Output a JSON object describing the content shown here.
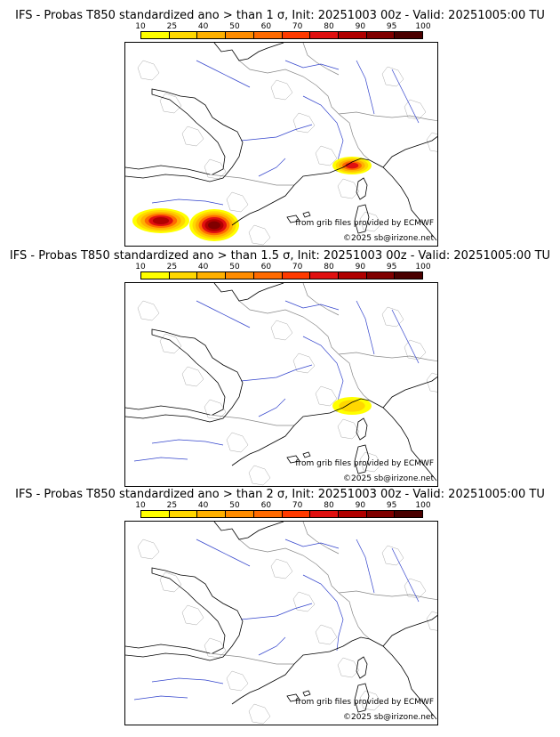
{
  "panels": [
    {
      "title": "IFS - Probas T850  standardized ano > than 1 σ, Init: 20251003 00z - Valid: 20251005:00 TU",
      "credit": "from grib files provided by ECMWF",
      "copyright": "©2025 sb@irizone.net",
      "blobs": [
        {
          "region": "southwest-spain-west",
          "intensity": 90
        },
        {
          "region": "southwest-spain-east",
          "intensity": 95
        },
        {
          "region": "gulf-of-genoa",
          "intensity": 80
        }
      ]
    },
    {
      "title": "IFS - Probas T850  standardized ano > than 1.5 σ, Init: 20251003 00z - Valid: 20251005:00 TU",
      "credit": "from grib files provided by ECMWF",
      "copyright": "©2025 sb@irizone.net",
      "blobs": [
        {
          "region": "gulf-of-genoa",
          "intensity": 25
        }
      ]
    },
    {
      "title": "IFS - Probas T850  standardized ano > than 2 σ, Init: 20251003 00z - Valid: 20251005:00 TU",
      "credit": "from grib files provided by ECMWF",
      "copyright": "©2025 sb@irizone.net",
      "blobs": []
    }
  ],
  "scale": {
    "labels": [
      "10",
      "25",
      "40",
      "50",
      "60",
      "70",
      "80",
      "90",
      "95",
      "100"
    ],
    "colors": [
      "#ffff00",
      "#ffd700",
      "#ffb000",
      "#ff8c00",
      "#ff6a00",
      "#ff3a00",
      "#e01010",
      "#b00000",
      "#800000",
      "#4a0000"
    ]
  }
}
